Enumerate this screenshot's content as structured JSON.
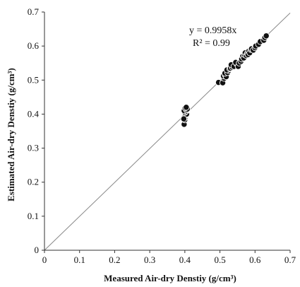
{
  "chart_data": {
    "type": "scatter",
    "title": "",
    "xlabel": "Measured Air-dry Denstiy (g/cm³)",
    "ylabel": "Estimated Air-dry Denstiy (g/cm³)",
    "xlim": [
      0,
      0.7
    ],
    "ylim": [
      0,
      0.7
    ],
    "xticks": [
      "0",
      "0.1",
      "0.2",
      "0.3",
      "0.4",
      "0.5",
      "0.6",
      "0.7"
    ],
    "yticks": [
      "0",
      "0.1",
      "0.2",
      "0.3",
      "0.4",
      "0.5",
      "0.6",
      "0.7"
    ],
    "grid": false,
    "legend": "none",
    "trendline": {
      "slope": 0.9958,
      "intercept": 0,
      "range": [
        0,
        0.7
      ]
    },
    "annotations": {
      "equation": "y = 0.9958x",
      "r2": "R² = 0.99"
    },
    "points": {
      "x": [
        0.398,
        0.4,
        0.401,
        0.399,
        0.402,
        0.405,
        0.4,
        0.403,
        0.398,
        0.405,
        0.407,
        0.401,
        0.404,
        0.397,
        0.496,
        0.508,
        0.512,
        0.51,
        0.515,
        0.518,
        0.514,
        0.522,
        0.525,
        0.52,
        0.528,
        0.53,
        0.535,
        0.532,
        0.54,
        0.548,
        0.545,
        0.552,
        0.555,
        0.56,
        0.562,
        0.565,
        0.568,
        0.57,
        0.572,
        0.575,
        0.578,
        0.58,
        0.582,
        0.585,
        0.588,
        0.59,
        0.595,
        0.6,
        0.602,
        0.61,
        0.615,
        0.625,
        0.628,
        0.632
      ],
      "y": [
        0.37,
        0.383,
        0.39,
        0.392,
        0.396,
        0.4,
        0.405,
        0.408,
        0.41,
        0.412,
        0.415,
        0.418,
        0.42,
        0.386,
        0.493,
        0.492,
        0.505,
        0.512,
        0.515,
        0.51,
        0.52,
        0.522,
        0.528,
        0.53,
        0.533,
        0.535,
        0.538,
        0.545,
        0.54,
        0.548,
        0.552,
        0.54,
        0.55,
        0.555,
        0.562,
        0.57,
        0.565,
        0.575,
        0.58,
        0.572,
        0.578,
        0.575,
        0.585,
        0.58,
        0.59,
        0.592,
        0.588,
        0.595,
        0.6,
        0.605,
        0.613,
        0.617,
        0.625,
        0.63
      ]
    }
  },
  "colors": {
    "point_fill": "#111111",
    "point_stroke": "#ffffff",
    "axis": "#333333",
    "trendline": "#888888"
  }
}
